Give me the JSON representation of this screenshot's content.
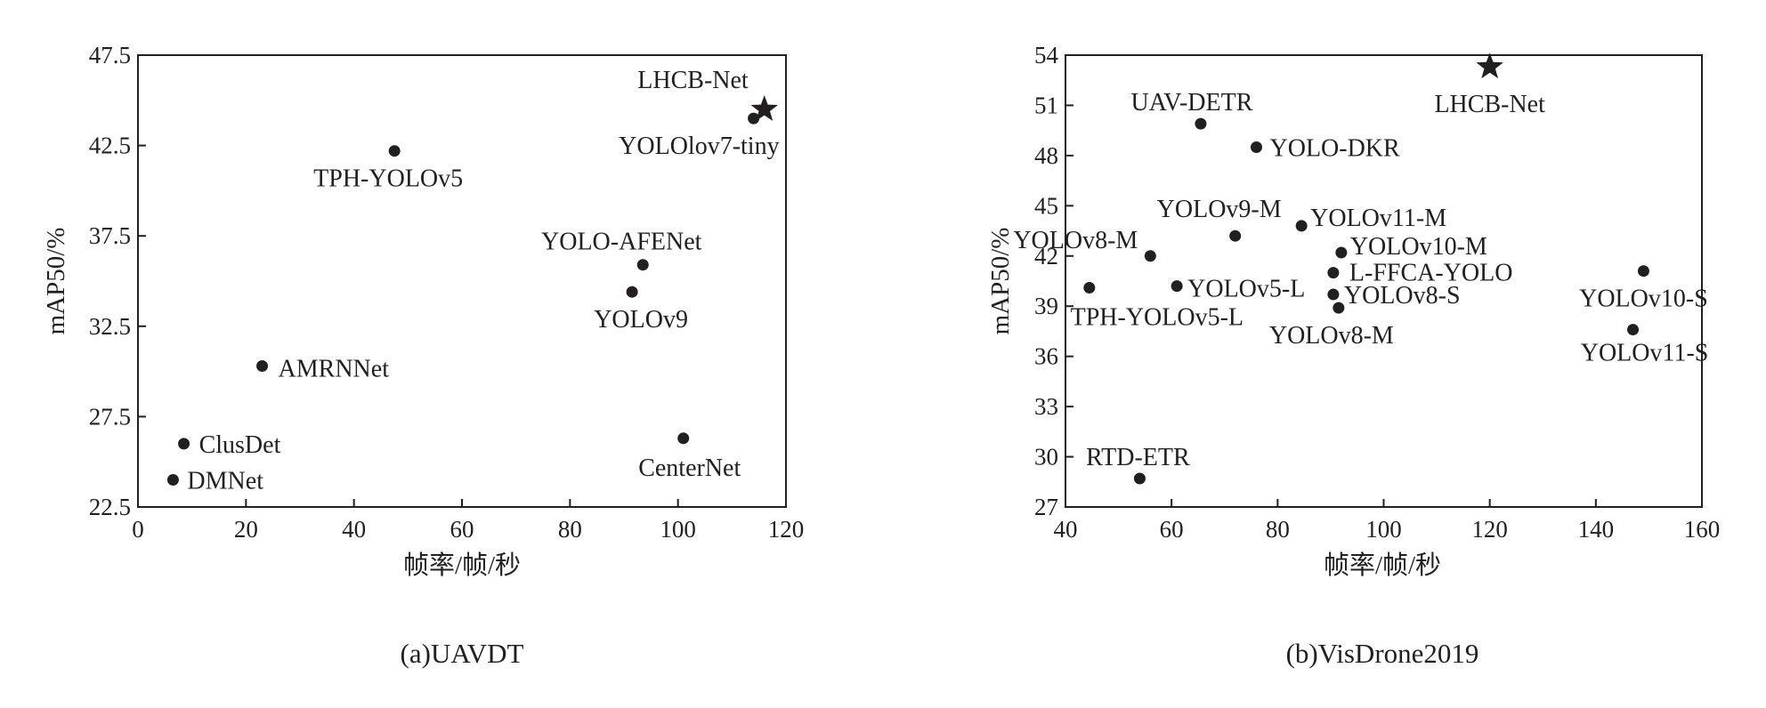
{
  "chart_data": [
    {
      "type": "scatter",
      "caption": "(a)UAVDT",
      "xlabel": "帧率/帧/秒",
      "ylabel": "mAP50/%",
      "xlim": [
        0,
        120
      ],
      "ylim": [
        22.5,
        47.5
      ],
      "xticks": [
        0,
        20,
        40,
        60,
        80,
        100,
        120
      ],
      "yticks": [
        22.5,
        27.5,
        32.5,
        37.5,
        42.5,
        47.5
      ],
      "ytick_labels": [
        "22.5",
        "27.5",
        "32.5",
        "37.5",
        "42.5",
        "47.5"
      ],
      "points": [
        {
          "label": "LHCB-Net",
          "x": 116,
          "y": 44.5,
          "marker": "star"
        },
        {
          "label": "YOLOlov7-tiny",
          "x": 114,
          "y": 44.0,
          "marker": "dot"
        },
        {
          "label": "TPH-YOLOv5",
          "x": 47.5,
          "y": 42.2,
          "marker": "dot"
        },
        {
          "label": "YOLO-AFENet",
          "x": 93.5,
          "y": 35.9,
          "marker": "dot"
        },
        {
          "label": "YOLOv9",
          "x": 91.5,
          "y": 34.4,
          "marker": "dot"
        },
        {
          "label": "AMRNNet",
          "x": 23,
          "y": 30.3,
          "marker": "dot"
        },
        {
          "label": "ClusDet",
          "x": 8.5,
          "y": 26.0,
          "marker": "dot"
        },
        {
          "label": "DMNet",
          "x": 6.5,
          "y": 24.0,
          "marker": "dot"
        },
        {
          "label": "CenterNet",
          "x": 101,
          "y": 26.3,
          "marker": "dot"
        }
      ]
    },
    {
      "type": "scatter",
      "caption": "(b)VisDrone2019",
      "xlabel": "帧率/帧/秒",
      "ylabel": "mAP50/%",
      "xlim": [
        40,
        160
      ],
      "ylim": [
        27,
        54
      ],
      "xticks": [
        40,
        60,
        80,
        100,
        120,
        140,
        160
      ],
      "yticks": [
        27,
        30,
        33,
        36,
        39,
        42,
        45,
        48,
        51,
        54
      ],
      "ytick_labels": [
        "27",
        "30",
        "33",
        "36",
        "39",
        "42",
        "45",
        "48",
        "51",
        "54"
      ],
      "points": [
        {
          "label": "LHCB-Net",
          "x": 120,
          "y": 53.3,
          "marker": "star"
        },
        {
          "label": "UAV-DETR",
          "x": 65.5,
          "y": 49.9,
          "marker": "dot"
        },
        {
          "label": "YOLO-DKR",
          "x": 76,
          "y": 48.5,
          "marker": "dot"
        },
        {
          "label": "YOLOv11-M",
          "x": 84.5,
          "y": 43.8,
          "marker": "dot"
        },
        {
          "label": "YOLOv9-M",
          "x": 72,
          "y": 43.2,
          "marker": "dot"
        },
        {
          "label": "YOLOv10-M",
          "x": 92,
          "y": 42.2,
          "marker": "dot"
        },
        {
          "label": "YOLOv8-M",
          "x": 56,
          "y": 42.0,
          "marker": "dot"
        },
        {
          "label": "L-FFCA-YOLO",
          "x": 90.5,
          "y": 41.0,
          "marker": "dot"
        },
        {
          "label": "YOLOv5-L",
          "x": 61,
          "y": 40.2,
          "marker": "dot"
        },
        {
          "label": "TPH-YOLOv5-L",
          "x": 44.5,
          "y": 40.1,
          "marker": "dot"
        },
        {
          "label": "YOLOv8-S",
          "x": 90.5,
          "y": 39.7,
          "marker": "dot"
        },
        {
          "label": "YOLOv8-M",
          "x": 91.5,
          "y": 38.9,
          "marker": "dot"
        },
        {
          "label": "YOLOv10-S",
          "x": 149,
          "y": 41.1,
          "marker": "dot"
        },
        {
          "label": "YOLOv11-S",
          "x": 147,
          "y": 37.6,
          "marker": "dot"
        },
        {
          "label": "RTD-ETR",
          "x": 54,
          "y": 28.7,
          "marker": "dot"
        }
      ]
    }
  ]
}
